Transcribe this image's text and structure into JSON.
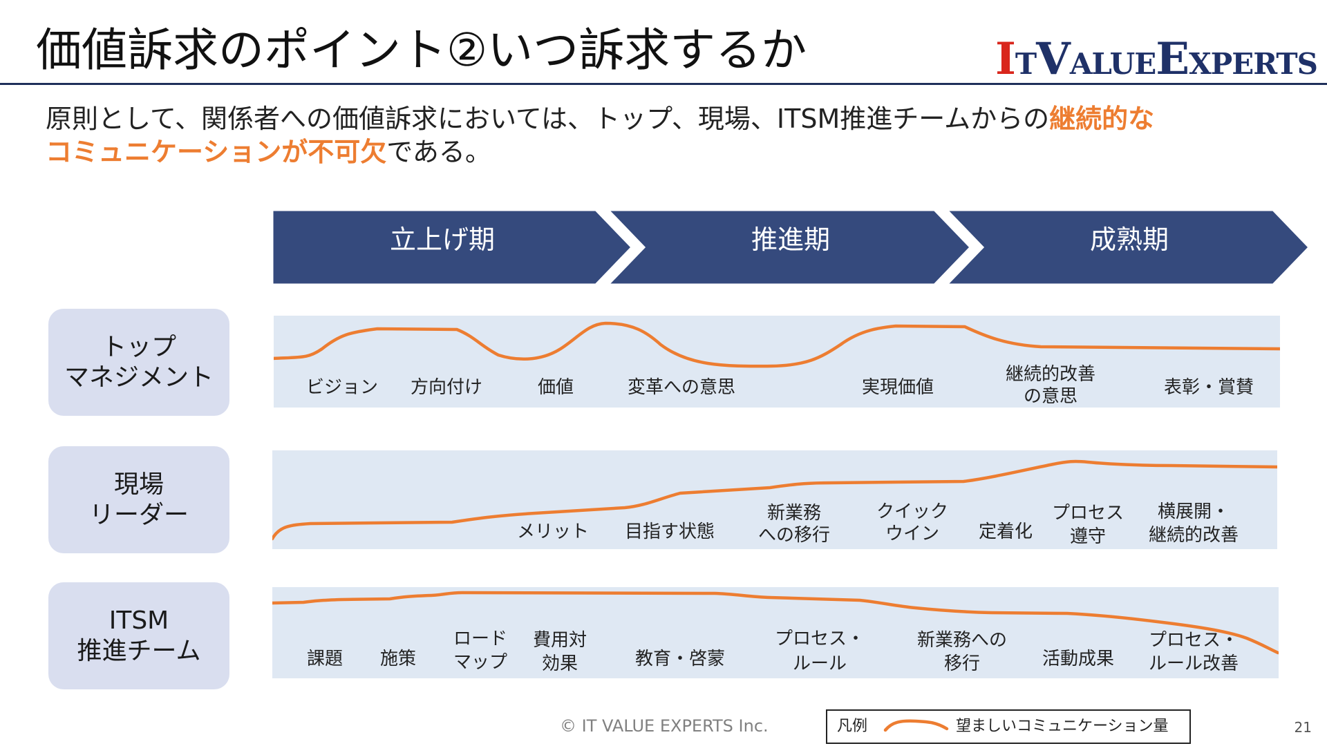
{
  "title": "価値訴求のポイント②いつ訴求するか",
  "logo": {
    "i": "I",
    "t": "T",
    "v": "V",
    "alue": "ALUE",
    "e": "E",
    "xperts": "XPERTS"
  },
  "lead": {
    "part1": "原則として、関係者への価値訴求においては、トップ、現場、ITSM推進チームからの",
    "highlight1": "継続的な",
    "highlight2": "コミュニケーションが不可欠",
    "part2": "である。"
  },
  "phases": [
    "立上げ期",
    "推進期",
    "成熟期"
  ],
  "rows": [
    {
      "name_line1": "トップ",
      "name_line2": "マネジメント",
      "keywords": [
        "ビジョン",
        "方向付け",
        "価値",
        "変革への意思",
        "実現価値",
        "継続的改善",
        "の意思",
        "表彰・賞賛"
      ]
    },
    {
      "name_line1": "現場",
      "name_line2": "リーダー",
      "keywords": [
        "メリット",
        "目指す状態",
        "新業務",
        "への移行",
        "クイック",
        "ウイン",
        "定着化",
        "プロセス",
        "遵守",
        "横展開・",
        "継続的改善"
      ]
    },
    {
      "name_line1": "ITSM",
      "name_line2": "推進チーム",
      "keywords": [
        "課題",
        "施策",
        "ロード",
        "マップ",
        "費用対",
        "効果",
        "教育・啓蒙",
        "プロセス・",
        "ルール",
        "新業務への",
        "移行",
        "活動成果",
        "プロセス・",
        "ルール改善"
      ]
    }
  ],
  "legend": {
    "title": "凡例",
    "label": "望ましいコミュニケーション量"
  },
  "colors": {
    "navy": "#354a7d",
    "curve": "#ed7d31",
    "band": "#dfe8f3",
    "label_box": "#d9deef",
    "highlight": "#ed7d31"
  },
  "footer": "© IT VALUE EXPERTS Inc.",
  "page_number": "21"
}
